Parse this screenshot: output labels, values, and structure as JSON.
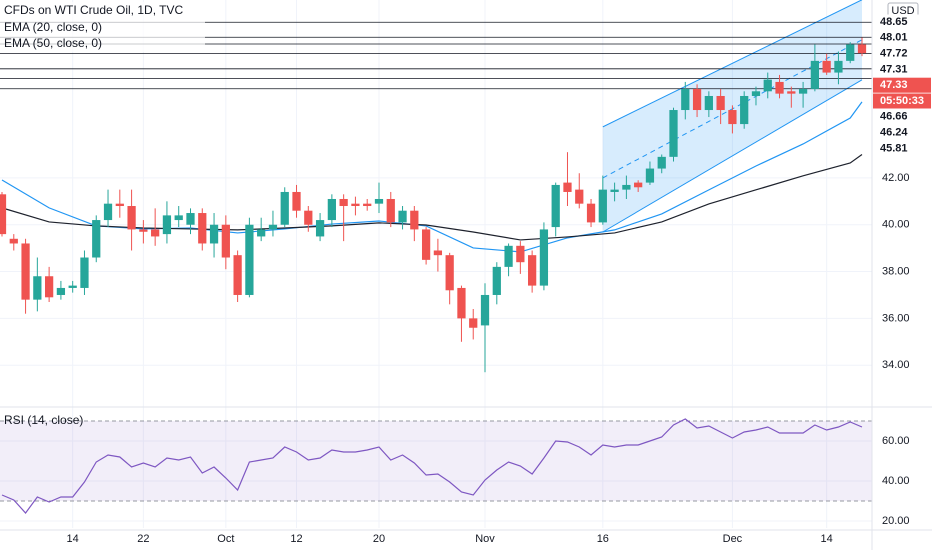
{
  "chart_data": [
    {
      "type": "candlestick",
      "title": "CFDs on WTI Crude Oil, 1D, TVC",
      "currency": "USD",
      "countdown": "05:50:33",
      "categories": [
        null,
        null,
        null,
        null,
        null,
        null,
        "14",
        null,
        null,
        null,
        null,
        null,
        "22",
        null,
        null,
        null,
        null,
        null,
        null,
        "Oct",
        null,
        null,
        null,
        null,
        null,
        "12",
        null,
        null,
        null,
        null,
        null,
        null,
        "20",
        null,
        null,
        null,
        null,
        null,
        null,
        null,
        null,
        "Nov",
        null,
        null,
        null,
        null,
        null,
        null,
        null,
        null,
        null,
        "16",
        null,
        null,
        null,
        null,
        null,
        null,
        null,
        null,
        null,
        null,
        "Dec",
        null,
        null,
        null,
        null,
        null,
        null,
        null,
        "14",
        null,
        null,
        null
      ],
      "open": [
        41.3,
        39.4,
        39.2,
        36.8,
        37.8,
        37.0,
        37.3,
        37.3,
        38.6,
        40.2,
        40.9,
        40.8,
        39.8,
        39.8,
        39.6,
        40.2,
        40.0,
        40.5,
        39.2,
        40.0,
        38.7,
        37.0,
        39.5,
        39.8,
        40.0,
        41.4,
        40.6,
        39.5,
        40.2,
        41.1,
        40.9,
        40.9,
        40.9,
        41.1,
        40.1,
        40.6,
        39.8,
        38.9,
        38.7,
        37.3,
        36.0,
        35.7,
        37.0,
        38.2,
        39.1,
        38.7,
        37.4,
        39.9,
        41.8,
        41.5,
        40.9,
        40.1,
        41.4,
        41.5,
        41.8,
        41.8,
        42.4,
        42.9,
        44.9,
        45.8,
        44.9,
        45.5,
        44.9,
        44.3,
        45.5,
        45.7,
        46.1,
        45.7,
        45.6,
        45.8,
        47.0,
        46.5,
        47.0,
        47.7
      ],
      "high": [
        41.4,
        39.6,
        39.4,
        38.6,
        38.2,
        37.6,
        37.6,
        38.9,
        40.4,
        41.5,
        41.5,
        41.5,
        40.2,
        40.7,
        41.0,
        40.8,
        40.7,
        40.7,
        40.5,
        40.4,
        38.9,
        40.3,
        40.3,
        40.6,
        41.6,
        41.7,
        40.8,
        40.5,
        41.3,
        41.3,
        41.2,
        41.1,
        41.8,
        41.4,
        40.8,
        40.8,
        39.9,
        39.4,
        38.8,
        37.4,
        36.4,
        37.5,
        38.4,
        39.2,
        39.3,
        38.9,
        40.1,
        41.8,
        43.1,
        42.2,
        41.1,
        42.1,
        41.8,
        42.1,
        41.9,
        42.7,
        43.0,
        45.0,
        46.1,
        46.0,
        45.7,
        45.8,
        45.1,
        45.7,
        45.9,
        46.5,
        46.4,
        45.9,
        46.1,
        47.7,
        47.3,
        47.4,
        47.8,
        48.0
      ],
      "low": [
        39.5,
        38.9,
        36.2,
        36.3,
        36.7,
        36.8,
        37.1,
        37.0,
        38.4,
        39.9,
        40.3,
        38.9,
        39.2,
        39.1,
        39.2,
        39.9,
        39.6,
        38.9,
        38.6,
        38.1,
        36.7,
        36.9,
        39.3,
        39.5,
        39.9,
        40.3,
        39.7,
        39.3,
        39.9,
        39.3,
        40.4,
        40.6,
        40.5,
        39.9,
        39.8,
        39.3,
        38.3,
        38.0,
        36.6,
        35.0,
        35.1,
        33.7,
        36.6,
        37.8,
        37.9,
        37.1,
        37.2,
        39.5,
        40.8,
        40.7,
        39.9,
        40.0,
        41.0,
        41.1,
        41.4,
        41.7,
        42.2,
        42.7,
        44.5,
        44.6,
        44.6,
        44.3,
        43.9,
        44.1,
        45.1,
        45.4,
        45.4,
        45.0,
        45.0,
        45.7,
        46.4,
        46.0,
        46.9,
        47.2
      ],
      "close": [
        39.6,
        39.2,
        36.8,
        37.8,
        36.9,
        37.3,
        37.4,
        38.6,
        40.2,
        40.9,
        40.8,
        39.8,
        39.7,
        39.5,
        40.4,
        40.4,
        40.5,
        39.2,
        40.0,
        38.6,
        37.0,
        40.0,
        39.8,
        40.0,
        41.4,
        40.6,
        40.0,
        40.2,
        41.1,
        40.8,
        40.8,
        40.8,
        41.1,
        40.1,
        40.6,
        39.8,
        38.5,
        38.7,
        37.2,
        36.0,
        35.6,
        37.0,
        38.2,
        39.1,
        38.4,
        37.4,
        39.8,
        41.7,
        41.4,
        40.9,
        40.1,
        41.5,
        41.5,
        41.7,
        41.6,
        42.4,
        42.9,
        44.9,
        45.8,
        44.9,
        45.5,
        44.9,
        44.3,
        45.5,
        45.7,
        46.2,
        45.6,
        45.6,
        45.8,
        47.0,
        46.5,
        47.0,
        47.7,
        47.33
      ],
      "up_color": "#26a69a",
      "down_color": "#ef5350",
      "series": [
        {
          "name": "EMA (20, close, 0)",
          "color": "#2196f3",
          "x": [
            0,
            4,
            8,
            12,
            16,
            20,
            24,
            28,
            32,
            36,
            40,
            44,
            48,
            52,
            56,
            60,
            64,
            68,
            72,
            73
          ],
          "values": [
            41.91,
            40.72,
            39.95,
            39.82,
            39.86,
            39.65,
            39.82,
            40.03,
            40.16,
            39.95,
            39.01,
            38.84,
            39.44,
            39.78,
            40.46,
            41.49,
            42.51,
            43.45,
            44.56,
            45.25
          ]
        },
        {
          "name": "EMA (50, close, 0)",
          "color": "#1e222d",
          "x": [
            0,
            4,
            8,
            12,
            16,
            20,
            24,
            28,
            32,
            36,
            40,
            44,
            48,
            52,
            56,
            60,
            64,
            68,
            72,
            73
          ],
          "values": [
            40.72,
            40.12,
            39.95,
            39.86,
            39.82,
            39.78,
            39.86,
            39.95,
            40.08,
            39.99,
            39.69,
            39.35,
            39.48,
            39.65,
            40.12,
            40.89,
            41.49,
            42.09,
            42.64,
            43.0
          ]
        }
      ],
      "channel": {
        "x": [
          51,
          73
        ],
        "upper": [
          44.18,
          49.61
        ],
        "middle": [
          42.0,
          47.9
        ],
        "lower": [
          39.69,
          46.19
        ],
        "color": "#2196f3"
      },
      "price_lines": [
        48.65,
        48.01,
        47.72,
        47.31,
        46.66,
        46.24,
        45.81
      ],
      "last_price": 47.33,
      "ylim": [
        32.3,
        49.6
      ],
      "yticks": [
        {
          "value": 34,
          "label": "34.00"
        },
        {
          "value": 36,
          "label": "36.00"
        },
        {
          "value": 38,
          "label": "38.00"
        },
        {
          "value": 40,
          "label": "40.00"
        },
        {
          "value": 42,
          "label": "42.00"
        }
      ]
    },
    {
      "type": "line",
      "title": "RSI (14, close)",
      "color": "#7e57c2",
      "values": [
        33,
        30.5,
        24,
        32,
        29.5,
        32,
        32,
        39.5,
        49.5,
        53,
        52,
        47,
        49,
        47,
        51.5,
        50.5,
        52,
        44,
        47,
        41.5,
        35.5,
        49.5,
        50.5,
        51.5,
        57,
        54.5,
        50.5,
        51.5,
        55.5,
        54.5,
        54.5,
        55.5,
        57,
        50.5,
        53,
        49,
        43,
        43.5,
        39.5,
        34.5,
        33,
        40.5,
        45.5,
        49.5,
        47.5,
        43.5,
        51.5,
        60,
        59.5,
        57,
        53,
        58,
        57,
        58,
        58,
        60,
        62,
        68,
        71,
        66.5,
        67.5,
        64.5,
        61.5,
        64.5,
        65.5,
        67,
        64,
        64,
        64,
        68,
        65.5,
        67,
        69.5,
        67
      ],
      "bands": [
        30,
        70
      ],
      "ylim": [
        16.5,
        75.5
      ],
      "yticks": [
        {
          "value": 20,
          "label": "20.00"
        },
        {
          "value": 40,
          "label": "40.00"
        },
        {
          "value": 60,
          "label": "60.00"
        }
      ]
    }
  ]
}
